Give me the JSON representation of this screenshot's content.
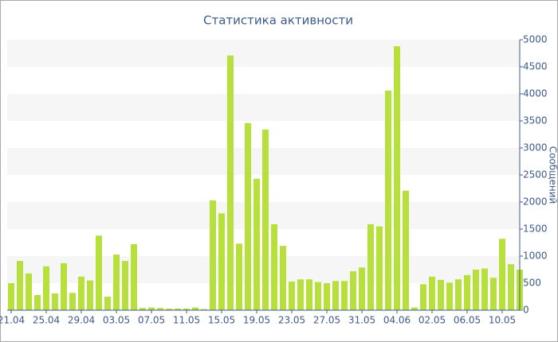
{
  "chart_data": {
    "type": "bar",
    "title": "Статистика активности",
    "y_label": "Сообщений",
    "categories": [
      "21.04",
      null,
      null,
      null,
      "25.04",
      null,
      null,
      null,
      "29.04",
      null,
      null,
      null,
      "03.05",
      null,
      null,
      null,
      "07.05",
      null,
      null,
      null,
      "11.05",
      null,
      null,
      null,
      "15.05",
      null,
      null,
      null,
      "19.05",
      null,
      null,
      null,
      "23.05",
      null,
      null,
      null,
      "27.05",
      null,
      null,
      null,
      "31.05",
      null,
      null,
      null,
      "04.06",
      null,
      null,
      null,
      "02.05",
      null,
      null,
      null,
      "06.05",
      null,
      null,
      null,
      "10.05",
      null,
      null
    ],
    "values": [
      500,
      910,
      680,
      280,
      810,
      310,
      870,
      320,
      620,
      550,
      1380,
      250,
      1030,
      910,
      1220,
      40,
      50,
      40,
      30,
      30,
      30,
      50,
      20,
      2030,
      1790,
      4710,
      1230,
      3460,
      2430,
      3340,
      1590,
      1190,
      530,
      570,
      570,
      520,
      500,
      540,
      540,
      720,
      790,
      1590,
      1550,
      4060,
      4880,
      2210,
      50,
      480,
      620,
      560,
      510,
      570,
      650,
      750,
      770,
      600,
      1320,
      850,
      750
    ],
    "color": "#b8e03c",
    "ylim": [
      0,
      5000
    ],
    "yticks": [
      0,
      500,
      1000,
      1500,
      2000,
      2500,
      3000,
      3500,
      4000,
      4500,
      5000
    ],
    "grid": true
  }
}
